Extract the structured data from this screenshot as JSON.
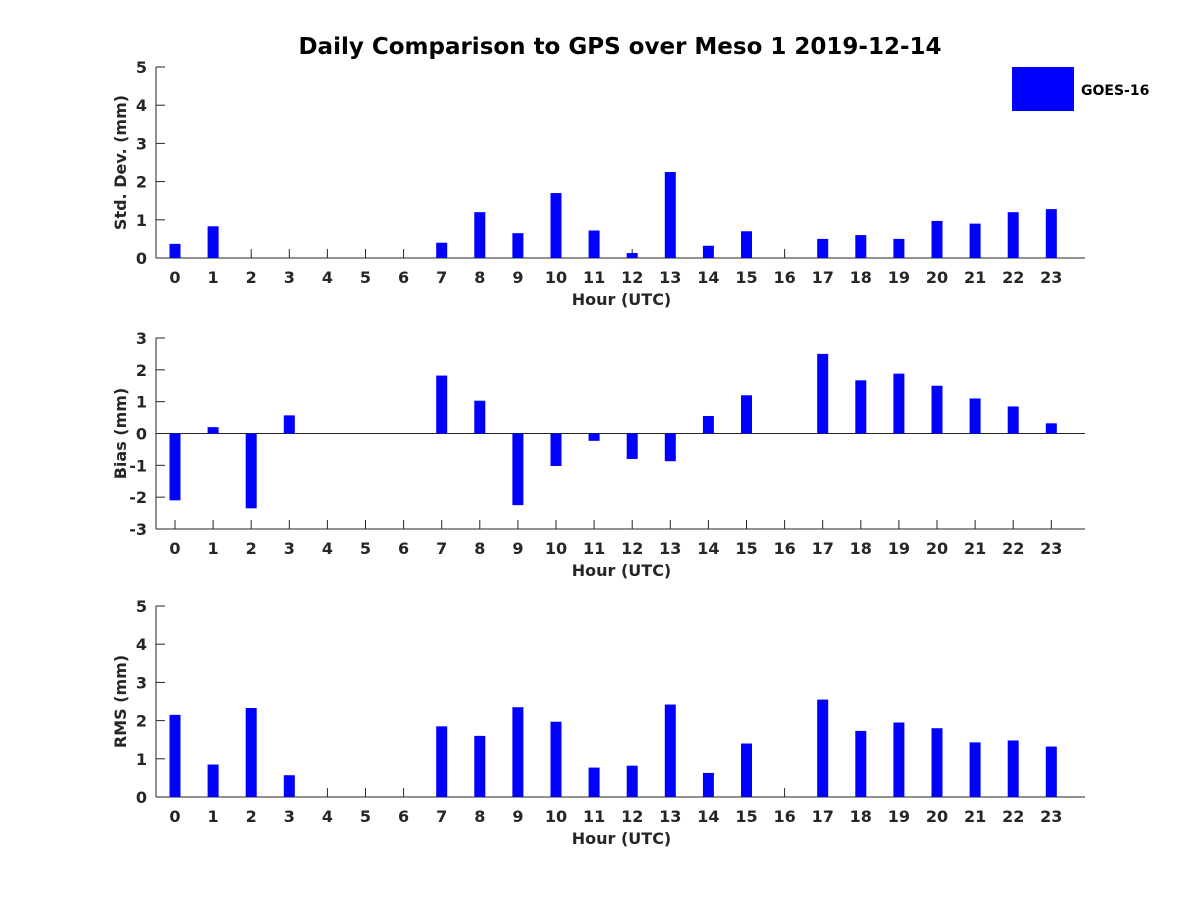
{
  "chart_data": [
    {
      "type": "bar",
      "title": "Daily Comparison to GPS over Meso 1 2019-12-14",
      "xlabel": "Hour (UTC)",
      "ylabel": "Std. Dev. (mm)",
      "ylim": [
        0,
        5
      ],
      "yticks": [
        "0",
        "1",
        "2",
        "3",
        "4",
        "5"
      ],
      "categories": [
        "0",
        "1",
        "2",
        "3",
        "4",
        "5",
        "6",
        "7",
        "8",
        "9",
        "10",
        "11",
        "12",
        "13",
        "14",
        "15",
        "16",
        "17",
        "18",
        "19",
        "20",
        "21",
        "22",
        "23"
      ],
      "series": [
        {
          "name": "GOES-16",
          "color": "#0000ff",
          "values": [
            0.37,
            0.83,
            0,
            0,
            0,
            0,
            0,
            0.4,
            1.2,
            0.65,
            1.7,
            0.72,
            0.13,
            2.25,
            0.32,
            0.7,
            0,
            0.5,
            0.6,
            0.5,
            0.97,
            0.9,
            1.2,
            1.28
          ]
        }
      ],
      "legend": {
        "label": "GOES-16",
        "color": "#0000ff",
        "placement": "top-right"
      }
    },
    {
      "type": "bar",
      "xlabel": "Hour (UTC)",
      "ylabel": "Bias (mm)",
      "ylim": [
        -3,
        3
      ],
      "yticks": [
        "-3",
        "-2",
        "-1",
        "0",
        "1",
        "2",
        "3"
      ],
      "categories": [
        "0",
        "1",
        "2",
        "3",
        "4",
        "5",
        "6",
        "7",
        "8",
        "9",
        "10",
        "11",
        "12",
        "13",
        "14",
        "15",
        "16",
        "17",
        "18",
        "19",
        "20",
        "21",
        "22",
        "23"
      ],
      "series": [
        {
          "name": "GOES-16",
          "color": "#0000ff",
          "values": [
            -2.1,
            0.2,
            -2.35,
            0.57,
            0,
            0,
            0,
            1.82,
            1.03,
            -2.25,
            -1.02,
            -0.23,
            -0.8,
            -0.87,
            0.55,
            1.2,
            0,
            2.5,
            1.67,
            1.88,
            1.5,
            1.1,
            0.85,
            0.32
          ]
        }
      ]
    },
    {
      "type": "bar",
      "xlabel": "Hour (UTC)",
      "ylabel": "RMS (mm)",
      "ylim": [
        0,
        5
      ],
      "yticks": [
        "0",
        "1",
        "2",
        "3",
        "4",
        "5"
      ],
      "categories": [
        "0",
        "1",
        "2",
        "3",
        "4",
        "5",
        "6",
        "7",
        "8",
        "9",
        "10",
        "11",
        "12",
        "13",
        "14",
        "15",
        "16",
        "17",
        "18",
        "19",
        "20",
        "21",
        "22",
        "23"
      ],
      "series": [
        {
          "name": "GOES-16",
          "color": "#0000ff",
          "values": [
            2.15,
            0.85,
            2.33,
            0.57,
            0,
            0,
            0,
            1.85,
            1.6,
            2.35,
            1.97,
            0.77,
            0.82,
            2.42,
            0.63,
            1.4,
            0,
            2.55,
            1.73,
            1.95,
            1.8,
            1.43,
            1.48,
            1.32
          ]
        }
      ]
    }
  ]
}
